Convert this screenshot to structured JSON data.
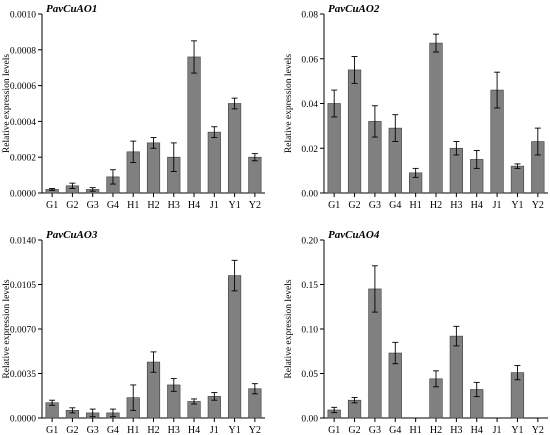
{
  "chart_data": [
    {
      "type": "bar",
      "title": "PavCuAO1",
      "ylabel": "Relative expression levels",
      "categories": [
        "G1",
        "G2",
        "G3",
        "G4",
        "H1",
        "H2",
        "H3",
        "H4",
        "J1",
        "Y1",
        "Y2"
      ],
      "values": [
        2e-05,
        4e-05,
        2e-05,
        9e-05,
        0.00023,
        0.00028,
        0.0002,
        0.00076,
        0.00034,
        0.0005,
        0.0002
      ],
      "errors": [
        5e-06,
        1.5e-05,
        1e-05,
        4e-05,
        6e-05,
        3e-05,
        8e-05,
        9e-05,
        3e-05,
        3e-05,
        2e-05
      ],
      "ylim": [
        0,
        0.001
      ],
      "yticks": [
        "0.0000",
        "0.0002",
        "0.0004",
        "0.0006",
        "0.0008",
        "0.0010"
      ],
      "ytick_values": [
        0,
        0.0002,
        0.0004,
        0.0006,
        0.0008,
        0.001
      ]
    },
    {
      "type": "bar",
      "title": "PavCuAO2",
      "ylabel": "Relative expression levels",
      "categories": [
        "G1",
        "G2",
        "G3",
        "G4",
        "H1",
        "H2",
        "H3",
        "H4",
        "J1",
        "Y1",
        "Y2"
      ],
      "values": [
        0.04,
        0.055,
        0.032,
        0.029,
        0.009,
        0.067,
        0.02,
        0.015,
        0.046,
        0.012,
        0.023
      ],
      "errors": [
        0.006,
        0.006,
        0.007,
        0.006,
        0.002,
        0.004,
        0.003,
        0.004,
        0.008,
        0.001,
        0.006
      ],
      "ylim": [
        0,
        0.08
      ],
      "yticks": [
        "0.00",
        "0.02",
        "0.04",
        "0.06",
        "0.08"
      ],
      "ytick_values": [
        0,
        0.02,
        0.04,
        0.06,
        0.08
      ]
    },
    {
      "type": "bar",
      "title": "PavCuAO3",
      "ylabel": "Relative expression levels",
      "categories": [
        "G1",
        "G2",
        "G3",
        "G4",
        "H1",
        "H2",
        "H3",
        "H4",
        "J1",
        "Y1",
        "Y2"
      ],
      "values": [
        0.0012,
        0.0006,
        0.0004,
        0.0004,
        0.0016,
        0.0044,
        0.0026,
        0.0013,
        0.0017,
        0.0112,
        0.0023
      ],
      "errors": [
        0.0002,
        0.0002,
        0.0003,
        0.0003,
        0.001,
        0.0008,
        0.0005,
        0.0002,
        0.0003,
        0.0012,
        0.0004
      ],
      "ylim": [
        0,
        0.014
      ],
      "yticks": [
        "0.0000",
        "0.0035",
        "0.0070",
        "0.0105",
        "0.0140"
      ],
      "ytick_values": [
        0,
        0.0035,
        0.007,
        0.0105,
        0.014
      ]
    },
    {
      "type": "bar",
      "title": "PavCuAO4",
      "ylabel": "Relative expression levels",
      "categories": [
        "G1",
        "G2",
        "G3",
        "G4",
        "H1",
        "H2",
        "H3",
        "H4",
        "J1",
        "Y1",
        "Y2"
      ],
      "values": [
        0.009,
        0.02,
        0.145,
        0.073,
        0.0,
        0.044,
        0.092,
        0.032,
        0.0,
        0.051,
        0.0
      ],
      "errors": [
        0.003,
        0.003,
        0.026,
        0.012,
        0.0,
        0.009,
        0.011,
        0.008,
        0.0,
        0.008,
        0.0
      ],
      "ylim": [
        0,
        0.2
      ],
      "yticks": [
        "0.00",
        "0.05",
        "0.10",
        "0.15",
        "0.20"
      ],
      "ytick_values": [
        0,
        0.05,
        0.1,
        0.15,
        0.2
      ]
    }
  ]
}
